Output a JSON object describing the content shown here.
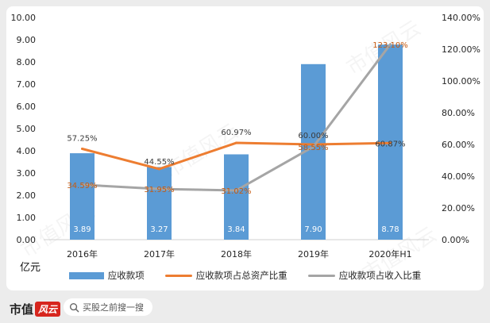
{
  "chart_data": {
    "type": "bar",
    "categories": [
      "2016年",
      "2017年",
      "2018年",
      "2019年",
      "2020年H1"
    ],
    "unit_label": "亿元",
    "left_axis": {
      "ylim": [
        0,
        10
      ],
      "ticks": [
        "0.00",
        "1.00",
        "2.00",
        "3.00",
        "4.00",
        "5.00",
        "6.00",
        "7.00",
        "8.00",
        "9.00",
        "10.00"
      ]
    },
    "right_axis": {
      "ylim": [
        0,
        140
      ],
      "ticks": [
        "0.00%",
        "20.00%",
        "40.00%",
        "60.00%",
        "80.00%",
        "100.00%",
        "120.00%",
        "140.00%"
      ]
    },
    "series": [
      {
        "name": "应收款项",
        "kind": "bar",
        "axis": "left",
        "color": "#5b9bd5",
        "values": [
          3.89,
          3.27,
          3.84,
          7.9,
          8.78
        ],
        "labels": [
          "3.89",
          "3.27",
          "3.84",
          "7.90",
          "8.78"
        ]
      },
      {
        "name": "应收款项占总资产比重",
        "kind": "line",
        "axis": "right",
        "color": "#ed7d31",
        "values": [
          57.25,
          44.55,
          60.97,
          60.0,
          60.87
        ],
        "labels": [
          "57.25%",
          "44.55%",
          "60.97%",
          "60.00%",
          "60.87%"
        ]
      },
      {
        "name": "应收款项占收入比重",
        "kind": "line",
        "axis": "right",
        "color": "#a5a5a5",
        "values": [
          34.59,
          31.95,
          31.02,
          58.55,
          123.1
        ],
        "labels": [
          "34.59%",
          "31.95%",
          "31.02%",
          "58.55%",
          "123.10%"
        ]
      }
    ],
    "grid": false,
    "legend_position": "bottom"
  },
  "footer": {
    "brand_text": "市值",
    "brand_mark": "风云",
    "search_placeholder": "买股之前搜一搜",
    "search_icon": "search-icon"
  },
  "watermark": "市值风云"
}
